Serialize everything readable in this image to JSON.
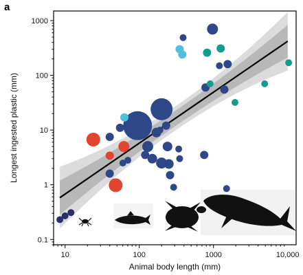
{
  "panel_label": "a",
  "chart_data": {
    "type": "scatter",
    "xlabel": "Animal body length (mm)",
    "ylabel": "Longest ingested plastic (mm)",
    "x_scale": "log",
    "y_scale": "log",
    "xlim": [
      7,
      13000
    ],
    "ylim": [
      0.08,
      1500
    ],
    "x_ticks": [
      10,
      100,
      1000,
      10000
    ],
    "x_tick_labels": [
      "10",
      "100",
      "1000",
      "10,000"
    ],
    "y_ticks": [
      0.1,
      1,
      10,
      100,
      1000
    ],
    "y_tick_labels": [
      "0.1",
      "1",
      "10",
      "100",
      "1000"
    ],
    "grid": false,
    "colors": {
      "invertebrates": "#2a2f6b",
      "fish": "#2e4787",
      "seabirds": "#e2452f",
      "turtles": "#4fbfdc",
      "mammals": "#169c8d",
      "fit_line": "#000000",
      "inner_band": "#b8b8b8",
      "outer_band": "#dcdcdc"
    },
    "silhouettes": [
      "crab-icon",
      "fish-icon",
      "turtle-icon",
      "whale-icon"
    ],
    "fit_line": {
      "x": [
        8.5,
        10000
      ],
      "y": [
        0.58,
        420
      ]
    },
    "series": [
      {
        "key": "invertebrates",
        "color": "#2a2f6b",
        "points": [
          {
            "x": 8.5,
            "y": 0.23,
            "r": 5
          },
          {
            "x": 10,
            "y": 0.27,
            "r": 5
          },
          {
            "x": 12,
            "y": 0.31,
            "r": 5
          }
        ]
      },
      {
        "key": "fish",
        "color": "#2e4787",
        "points": [
          {
            "x": 95,
            "y": 12,
            "r": 21
          },
          {
            "x": 200,
            "y": 24,
            "r": 16
          },
          {
            "x": 40,
            "y": 7.5,
            "r": 6
          },
          {
            "x": 55,
            "y": 11,
            "r": 6
          },
          {
            "x": 70,
            "y": 2.8,
            "r": 5
          },
          {
            "x": 60,
            "y": 2.5,
            "r": 5
          },
          {
            "x": 40,
            "y": 1.6,
            "r": 6
          },
          {
            "x": 130,
            "y": 5,
            "r": 8
          },
          {
            "x": 150,
            "y": 3,
            "r": 7
          },
          {
            "x": 120,
            "y": 3.5,
            "r": 6
          },
          {
            "x": 170,
            "y": 9,
            "r": 7
          },
          {
            "x": 230,
            "y": 12,
            "r": 6
          },
          {
            "x": 240,
            "y": 5,
            "r": 7
          },
          {
            "x": 340,
            "y": 4.5,
            "r": 5
          },
          {
            "x": 200,
            "y": 2.5,
            "r": 8
          },
          {
            "x": 250,
            "y": 2.4,
            "r": 7
          },
          {
            "x": 260,
            "y": 1.5,
            "r": 6
          },
          {
            "x": 290,
            "y": 0.9,
            "r": 5
          },
          {
            "x": 350,
            "y": 3,
            "r": 5
          },
          {
            "x": 190,
            "y": 10,
            "r": 5
          },
          {
            "x": 750,
            "y": 3.5,
            "r": 6
          },
          {
            "x": 970,
            "y": 700,
            "r": 8
          },
          {
            "x": 390,
            "y": 490,
            "r": 5
          },
          {
            "x": 1200,
            "y": 150,
            "r": 5
          },
          {
            "x": 1550,
            "y": 160,
            "r": 6
          },
          {
            "x": 780,
            "y": 60,
            "r": 6
          },
          {
            "x": 1400,
            "y": 55,
            "r": 6
          },
          {
            "x": 1500,
            "y": 0.85,
            "r": 5
          }
        ]
      },
      {
        "key": "seabirds",
        "color": "#e2452f",
        "points": [
          {
            "x": 24,
            "y": 6.7,
            "r": 10
          },
          {
            "x": 62,
            "y": 5,
            "r": 8
          },
          {
            "x": 40,
            "y": 3.4,
            "r": 6
          },
          {
            "x": 48,
            "y": 0.98,
            "r": 10
          }
        ]
      },
      {
        "key": "turtles",
        "color": "#4fbfdc",
        "points": [
          {
            "x": 63,
            "y": 17,
            "r": 6
          },
          {
            "x": 350,
            "y": 300,
            "r": 6
          },
          {
            "x": 380,
            "y": 240,
            "r": 6
          }
        ]
      },
      {
        "key": "mammals",
        "color": "#169c8d",
        "points": [
          {
            "x": 820,
            "y": 260,
            "r": 6
          },
          {
            "x": 1250,
            "y": 310,
            "r": 6
          },
          {
            "x": 900,
            "y": 70,
            "r": 5
          },
          {
            "x": 1950,
            "y": 32,
            "r": 5
          },
          {
            "x": 4900,
            "y": 70,
            "r": 5
          },
          {
            "x": 10300,
            "y": 170,
            "r": 5
          }
        ]
      }
    ]
  }
}
